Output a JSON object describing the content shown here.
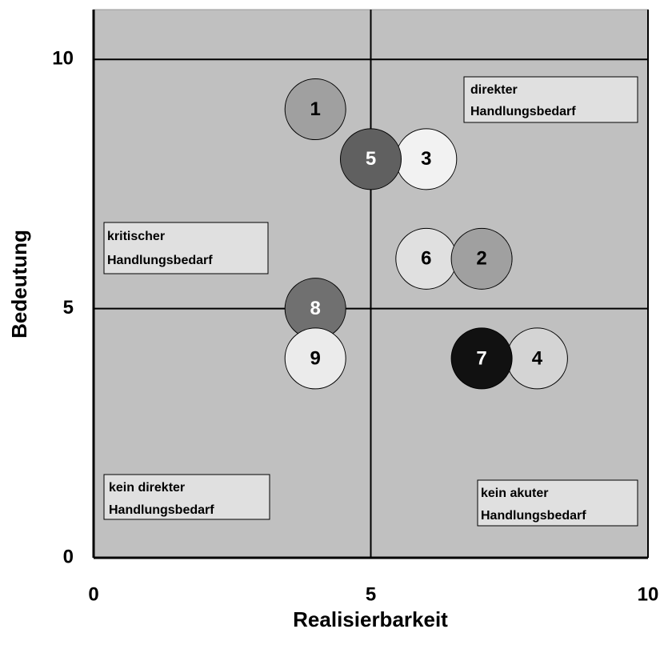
{
  "chart_data": {
    "type": "scatter",
    "x_label": "Realisierbarkeit",
    "y_label": "Bedeutung",
    "xlim": [
      0,
      10
    ],
    "ylim": [
      0,
      11
    ],
    "xticks": [
      0,
      5,
      10
    ],
    "yticks": [
      0,
      5,
      10
    ],
    "grid": true,
    "background": "#c0c0c0",
    "points": [
      {
        "label": "1",
        "x": 4,
        "y": 9,
        "color": "#a0a0a0"
      },
      {
        "label": "6",
        "x": 6,
        "y": 6,
        "color": "#e0e0e0"
      },
      {
        "label": "2",
        "x": 7,
        "y": 6,
        "color": "#a0a0a0"
      },
      {
        "label": "3",
        "x": 6,
        "y": 8,
        "color": "#f2f2f2"
      },
      {
        "label": "5",
        "x": 5,
        "y": 8,
        "color": "#606060"
      },
      {
        "label": "8",
        "x": 4,
        "y": 5,
        "color": "#707070"
      },
      {
        "label": "9",
        "x": 4,
        "y": 4,
        "color": "#ebebeb"
      },
      {
        "label": "4",
        "x": 8,
        "y": 4,
        "color": "#d4d4d4"
      },
      {
        "label": "7",
        "x": 7,
        "y": 4,
        "color": "#111111"
      }
    ],
    "annotations": [
      [
        "direkter",
        "Handlungsbedarf"
      ],
      [
        "kritischer",
        "Handlungsbedarf"
      ],
      [
        "kein direkter",
        "Handlungsbedarf"
      ],
      [
        "kein akuter",
        "Handlungsbedarf"
      ]
    ]
  }
}
